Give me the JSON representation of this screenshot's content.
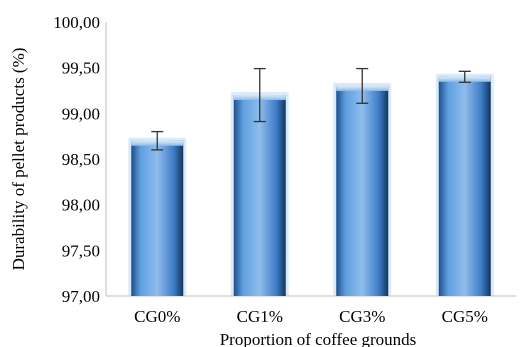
{
  "chart_data": {
    "type": "bar",
    "title": "",
    "xlabel": "Proportion of coffee grounds",
    "ylabel": "Durability of pellet products (%)",
    "categories": [
      "CG0%",
      "CG1%",
      "CG3%",
      "CG5%"
    ],
    "values": [
      98.7,
      99.2,
      99.3,
      99.4
    ],
    "error": [
      0.1,
      0.29,
      0.19,
      0.06
    ],
    "ylim": [
      97.0,
      100.0
    ],
    "yticks": [
      97.0,
      97.5,
      98.0,
      98.5,
      99.0,
      99.5,
      100.0
    ],
    "ytick_labels": [
      "97,00",
      "97,50",
      "98,00",
      "98,50",
      "99,00",
      "99,50",
      "100,00"
    ],
    "grid": false,
    "legend": "none",
    "colors": {
      "bar_light": "#9cc6ee",
      "bar_mid": "#4a8fd8",
      "bar_dark": "#163f73",
      "bar_glow": "#bcd8f2",
      "error_bar": "#333333"
    }
  }
}
